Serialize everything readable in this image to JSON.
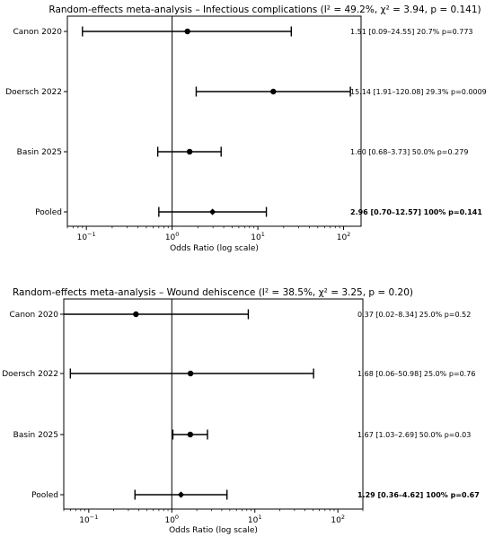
{
  "chart_data": [
    {
      "type": "forest",
      "title": "Random-effects meta-analysis – Infectious complications (I² = 49.2%, χ² = 3.94, p = 0.141)",
      "xlabel": "Odds Ratio (log scale)",
      "xscale": "log",
      "xlim": [
        0.06,
        160
      ],
      "xticks": [
        {
          "value": 0.1,
          "base": "10",
          "exp": "−1"
        },
        {
          "value": 1,
          "base": "10",
          "exp": "0"
        },
        {
          "value": 10,
          "base": "10",
          "exp": "1"
        },
        {
          "value": 100,
          "base": "10",
          "exp": "2"
        }
      ],
      "reference_line": 1,
      "rows": [
        {
          "label": "Canon 2020",
          "or": 1.51,
          "lo": 0.09,
          "hi": 24.55,
          "annotation": "1.51 [0.09–24.55]   20.7%   p=0.773",
          "pooled": false
        },
        {
          "label": "Doersch 2022",
          "or": 15.14,
          "lo": 1.91,
          "hi": 120.08,
          "annotation": "15.14 [1.91–120.08]   29.3%   p=0.0009",
          "pooled": false
        },
        {
          "label": "Basin 2025",
          "or": 1.6,
          "lo": 0.68,
          "hi": 3.73,
          "annotation": "1.60 [0.68–3.73]   50.0%   p=0.279",
          "pooled": false
        },
        {
          "label": "Pooled",
          "or": 2.96,
          "lo": 0.7,
          "hi": 12.57,
          "annotation": "2.96 [0.70–12.57]   100%   p=0.141",
          "pooled": true
        }
      ]
    },
    {
      "type": "forest",
      "title": "Random-effects meta-analysis – Wound dehiscence (I² = 38.5%, χ² = 3.25, p = 0.20)",
      "xlabel": "Odds Ratio (log scale)",
      "xscale": "log",
      "xlim": [
        0.05,
        200
      ],
      "xticks": [
        {
          "value": 0.1,
          "base": "10",
          "exp": "−1"
        },
        {
          "value": 1,
          "base": "10",
          "exp": "0"
        },
        {
          "value": 10,
          "base": "10",
          "exp": "1"
        },
        {
          "value": 100,
          "base": "10",
          "exp": "2"
        }
      ],
      "reference_line": 1,
      "rows": [
        {
          "label": "Canon 2020",
          "or": 0.37,
          "lo": 0.02,
          "hi": 8.34,
          "annotation": "0.37 [0.02–8.34]   25.0%   p=0.52",
          "pooled": false
        },
        {
          "label": "Doersch 2022",
          "or": 1.68,
          "lo": 0.06,
          "hi": 50.98,
          "annotation": "1.68 [0.06–50.98]   25.0%   p=0.76",
          "pooled": false
        },
        {
          "label": "Basin 2025",
          "or": 1.67,
          "lo": 1.03,
          "hi": 2.69,
          "annotation": "1.67 [1.03–2.69]   50.0%   p=0.03",
          "pooled": false
        },
        {
          "label": "Pooled",
          "or": 1.29,
          "lo": 0.36,
          "hi": 4.62,
          "annotation": "1.29 [0.36–4.62]   100%   p=0.67",
          "pooled": true
        }
      ]
    }
  ]
}
